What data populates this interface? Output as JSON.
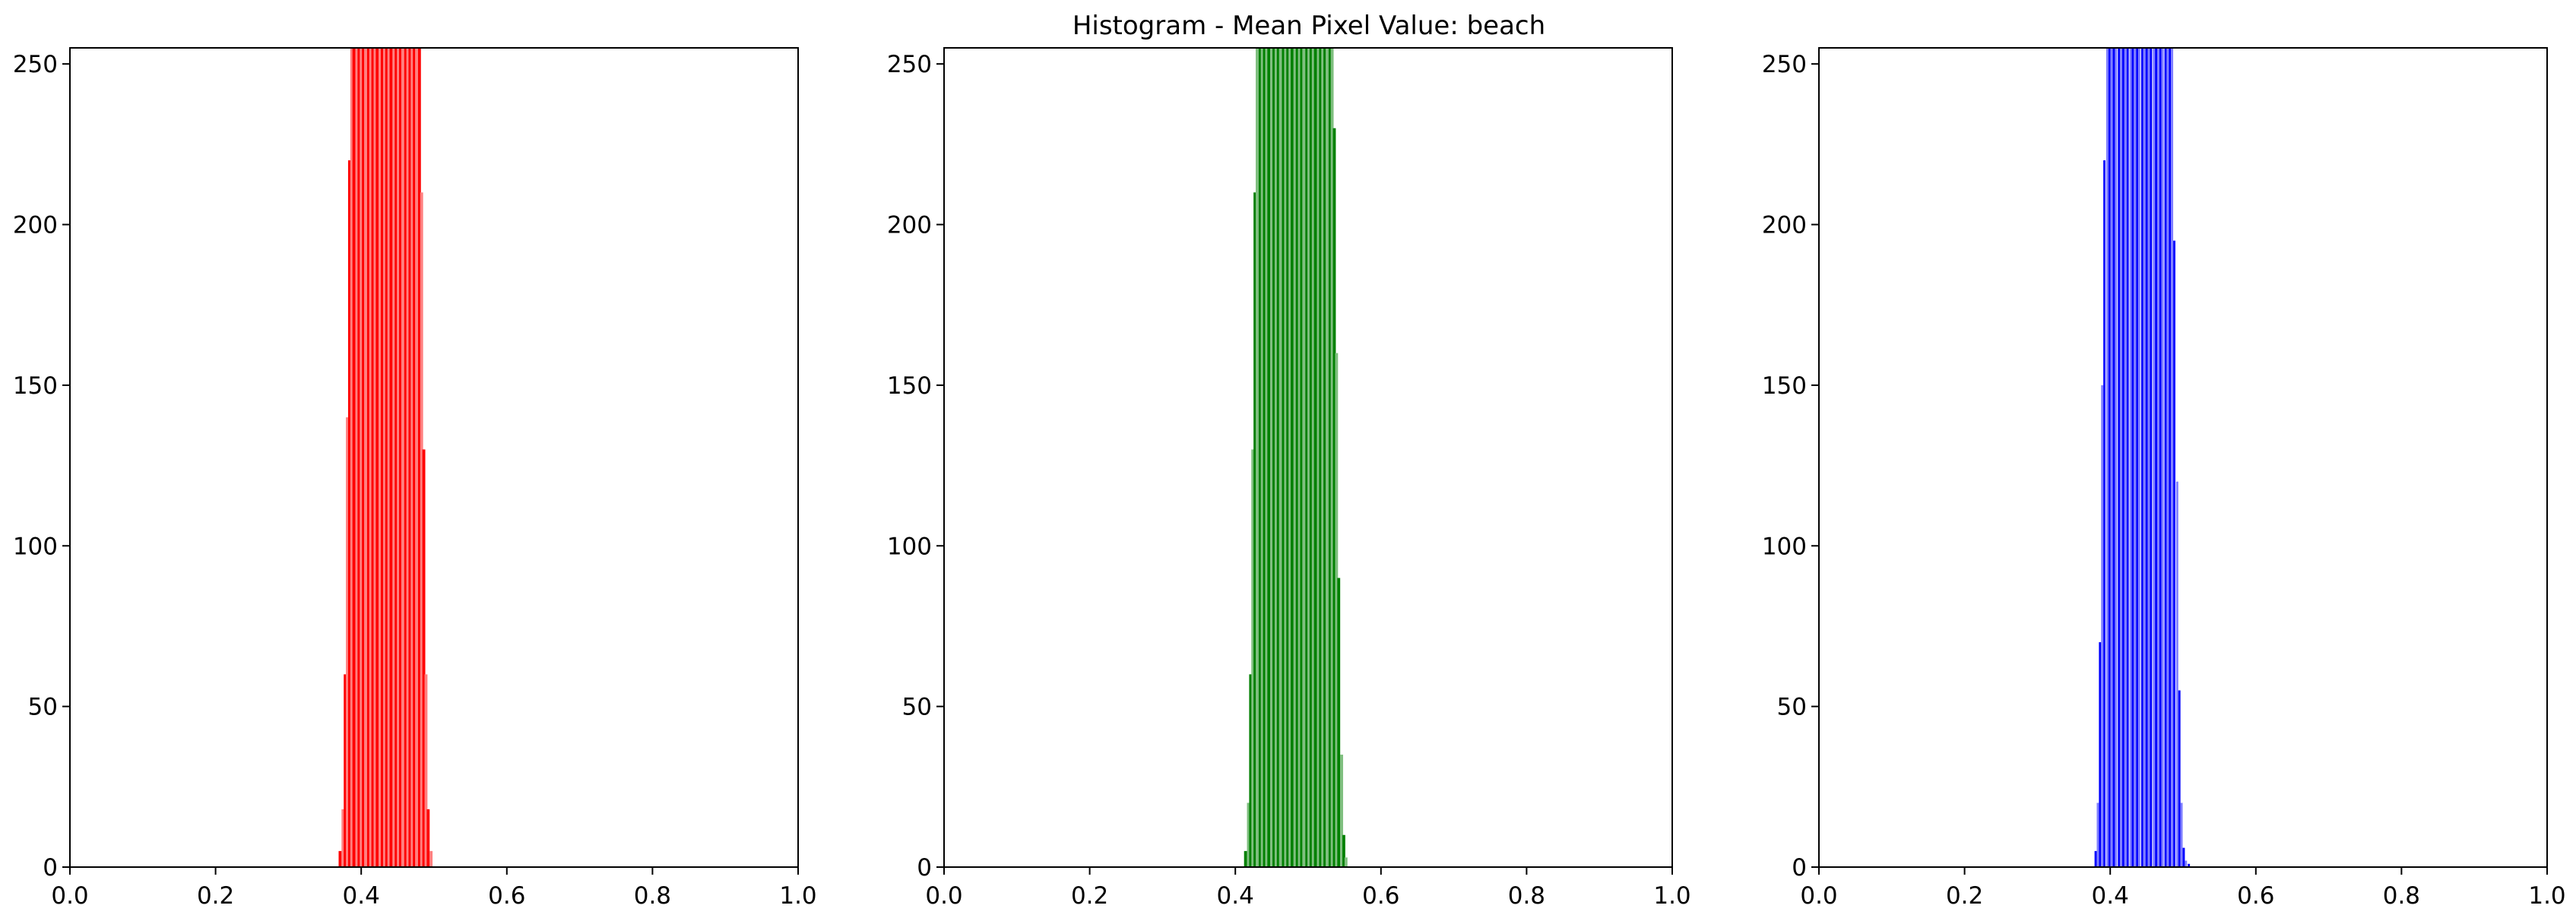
{
  "figure": {
    "title": "Histogram - Mean Pixel Value:  beach"
  },
  "chart_data": [
    {
      "type": "bar",
      "title": "",
      "xlabel": "",
      "ylabel": "",
      "xlim": [
        0.0,
        1.0
      ],
      "ylim": [
        0,
        255
      ],
      "xticks": [
        "0.0",
        "0.2",
        "0.4",
        "0.6",
        "0.8",
        "1.0"
      ],
      "yticks": [
        "0",
        "50",
        "100",
        "150",
        "200",
        "250"
      ],
      "grid": false,
      "color": "#ff0000",
      "light_color": "#ff8080",
      "x": [
        0.371,
        0.375,
        0.378,
        0.381,
        0.384,
        0.387,
        0.39,
        0.394,
        0.397,
        0.4,
        0.403,
        0.406,
        0.41,
        0.413,
        0.416,
        0.419,
        0.422,
        0.426,
        0.429,
        0.432,
        0.435,
        0.438,
        0.441,
        0.445,
        0.448,
        0.451,
        0.454,
        0.457,
        0.461,
        0.464,
        0.467,
        0.47,
        0.473,
        0.476,
        0.48,
        0.483,
        0.486,
        0.489,
        0.492,
        0.496
      ],
      "values": [
        5,
        18,
        60,
        140,
        220,
        255,
        255,
        255,
        255,
        255,
        255,
        255,
        255,
        255,
        255,
        255,
        255,
        255,
        255,
        255,
        255,
        255,
        255,
        255,
        255,
        255,
        255,
        255,
        255,
        255,
        255,
        255,
        255,
        255,
        255,
        210,
        130,
        60,
        18,
        5
      ]
    },
    {
      "type": "bar",
      "title": "",
      "xlabel": "",
      "ylabel": "",
      "xlim": [
        0.0,
        1.0
      ],
      "ylim": [
        0,
        255
      ],
      "xticks": [
        "0.0",
        "0.2",
        "0.4",
        "0.6",
        "0.8",
        "1.0"
      ],
      "yticks": [
        "0",
        "50",
        "100",
        "150",
        "200",
        "250"
      ],
      "grid": false,
      "color": "#008000",
      "light_color": "#7fbf7f",
      "x": [
        0.414,
        0.418,
        0.421,
        0.424,
        0.427,
        0.43,
        0.434,
        0.437,
        0.44,
        0.443,
        0.446,
        0.45,
        0.453,
        0.456,
        0.459,
        0.462,
        0.466,
        0.469,
        0.472,
        0.475,
        0.478,
        0.482,
        0.485,
        0.488,
        0.491,
        0.494,
        0.498,
        0.501,
        0.504,
        0.507,
        0.51,
        0.514,
        0.517,
        0.52,
        0.523,
        0.526,
        0.53,
        0.533,
        0.536,
        0.539,
        0.542,
        0.546,
        0.549,
        0.552
      ],
      "values": [
        5,
        20,
        60,
        130,
        210,
        255,
        255,
        255,
        255,
        255,
        255,
        255,
        255,
        255,
        255,
        255,
        255,
        255,
        255,
        255,
        255,
        255,
        255,
        255,
        255,
        255,
        255,
        255,
        255,
        255,
        255,
        255,
        255,
        255,
        255,
        255,
        255,
        255,
        230,
        160,
        90,
        35,
        10,
        3
      ]
    },
    {
      "type": "bar",
      "title": "",
      "xlabel": "",
      "ylabel": "",
      "xlim": [
        0.0,
        1.0
      ],
      "ylim": [
        0,
        255
      ],
      "xticks": [
        "0.0",
        "0.2",
        "0.4",
        "0.6",
        "0.8",
        "1.0"
      ],
      "yticks": [
        "0",
        "50",
        "100",
        "150",
        "200",
        "250"
      ],
      "grid": false,
      "color": "#0000ff",
      "light_color": "#8080ff",
      "x": [
        0.38,
        0.383,
        0.386,
        0.389,
        0.392,
        0.396,
        0.399,
        0.402,
        0.405,
        0.408,
        0.412,
        0.415,
        0.418,
        0.421,
        0.424,
        0.428,
        0.431,
        0.434,
        0.437,
        0.44,
        0.444,
        0.447,
        0.45,
        0.453,
        0.456,
        0.46,
        0.463,
        0.466,
        0.469,
        0.472,
        0.476,
        0.479,
        0.482,
        0.485,
        0.488,
        0.492,
        0.495,
        0.498,
        0.501,
        0.504,
        0.508
      ],
      "values": [
        5,
        20,
        70,
        150,
        220,
        255,
        255,
        255,
        255,
        255,
        255,
        255,
        255,
        255,
        255,
        255,
        255,
        255,
        255,
        255,
        255,
        255,
        255,
        255,
        255,
        255,
        255,
        255,
        255,
        255,
        255,
        255,
        255,
        255,
        195,
        120,
        55,
        20,
        6,
        2,
        1
      ]
    }
  ]
}
